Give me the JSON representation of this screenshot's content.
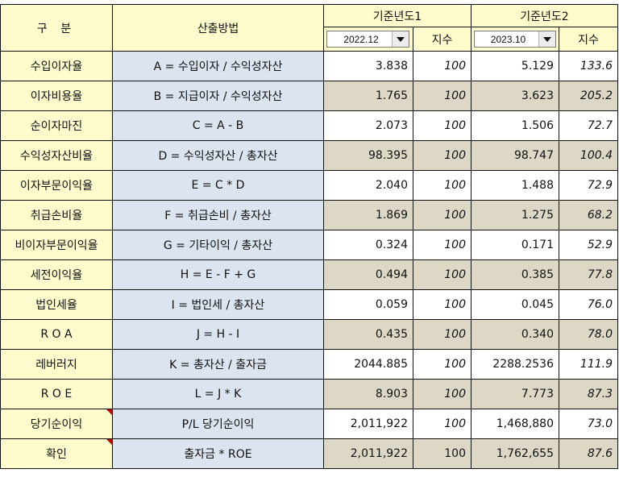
{
  "header": {
    "category_label": "구 분",
    "method_label": "산출방법",
    "base_year1": {
      "title": "기준년도1",
      "selected_period": "2022.12",
      "index_label": "지수"
    },
    "base_year2": {
      "title": "기준년도2",
      "selected_period": "2023.10",
      "index_label": "지수"
    }
  },
  "rows": [
    {
      "label": "수입이자율",
      "formula": "A = 수입이자 / 수익성자산",
      "v1": "3.838",
      "i1": "100",
      "v2": "5.129",
      "i2": "133.6",
      "shade": "white"
    },
    {
      "label": "이자비용율",
      "formula": "B = 지급이자 / 수익성자산",
      "v1": "1.765",
      "i1": "100",
      "v2": "3.623",
      "i2": "205.2",
      "shade": "tan"
    },
    {
      "label": "순이자마진",
      "formula": "C = A - B",
      "v1": "2.073",
      "i1": "100",
      "v2": "1.506",
      "i2": "72.7",
      "shade": "white"
    },
    {
      "label": "수익성자산비율",
      "formula": "D = 수익성자산 / 총자산",
      "v1": "98.395",
      "i1": "100",
      "v2": "98.747",
      "i2": "100.4",
      "shade": "tan"
    },
    {
      "label": "이자부문이익율",
      "formula": "E = C * D",
      "v1": "2.040",
      "i1": "100",
      "v2": "1.488",
      "i2": "72.9",
      "shade": "white"
    },
    {
      "label": "취급손비율",
      "formula": "F = 취급손비 / 총자산",
      "v1": "1.869",
      "i1": "100",
      "v2": "1.275",
      "i2": "68.2",
      "shade": "tan"
    },
    {
      "label": "비이자부문이익율",
      "formula": "G = 기타이익 / 총자산",
      "v1": "0.324",
      "i1": "100",
      "v2": "0.171",
      "i2": "52.9",
      "shade": "white"
    },
    {
      "label": "세전이익율",
      "formula": "H = E - F + G",
      "v1": "0.494",
      "i1": "100",
      "v2": "0.385",
      "i2": "77.8",
      "shade": "tan"
    },
    {
      "label": "법인세율",
      "formula": "I = 법인세 / 총자산",
      "v1": "0.059",
      "i1": "100",
      "v2": "0.045",
      "i2": "76.0",
      "shade": "white"
    },
    {
      "label": "R O A",
      "formula": "J = H - I",
      "v1": "0.435",
      "i1": "100",
      "v2": "0.340",
      "i2": "78.0",
      "shade": "tan"
    },
    {
      "label": "레버러지",
      "formula": "K = 총자산 / 출자금",
      "v1": "2044.885",
      "i1": "100",
      "v2": "2288.2536",
      "i2": "111.9",
      "shade": "white"
    },
    {
      "label": "R O E",
      "formula": "L = J * K",
      "v1": "8.903",
      "i1": "100",
      "v2": "7.773",
      "i2": "87.3",
      "shade": "tan"
    },
    {
      "label": "당기순이익",
      "formula": "P/L 당기순이익",
      "v1": "2,011,922",
      "i1": "100",
      "v2": "1,468,880",
      "i2": "73.0",
      "shade": "white",
      "has_comment": true
    },
    {
      "label": "확인",
      "formula": "출자금 * ROE",
      "v1": "2,011,922",
      "i1": "100",
      "v2": "1,762,655",
      "i2": "87.6",
      "shade": "tan",
      "has_comment": true
    }
  ],
  "colors": {
    "label_bg": "#fefccd",
    "formula_bg": "#dce4ef",
    "tan_row_bg": "#ddd8c6",
    "comment_marker": "#c00000"
  }
}
